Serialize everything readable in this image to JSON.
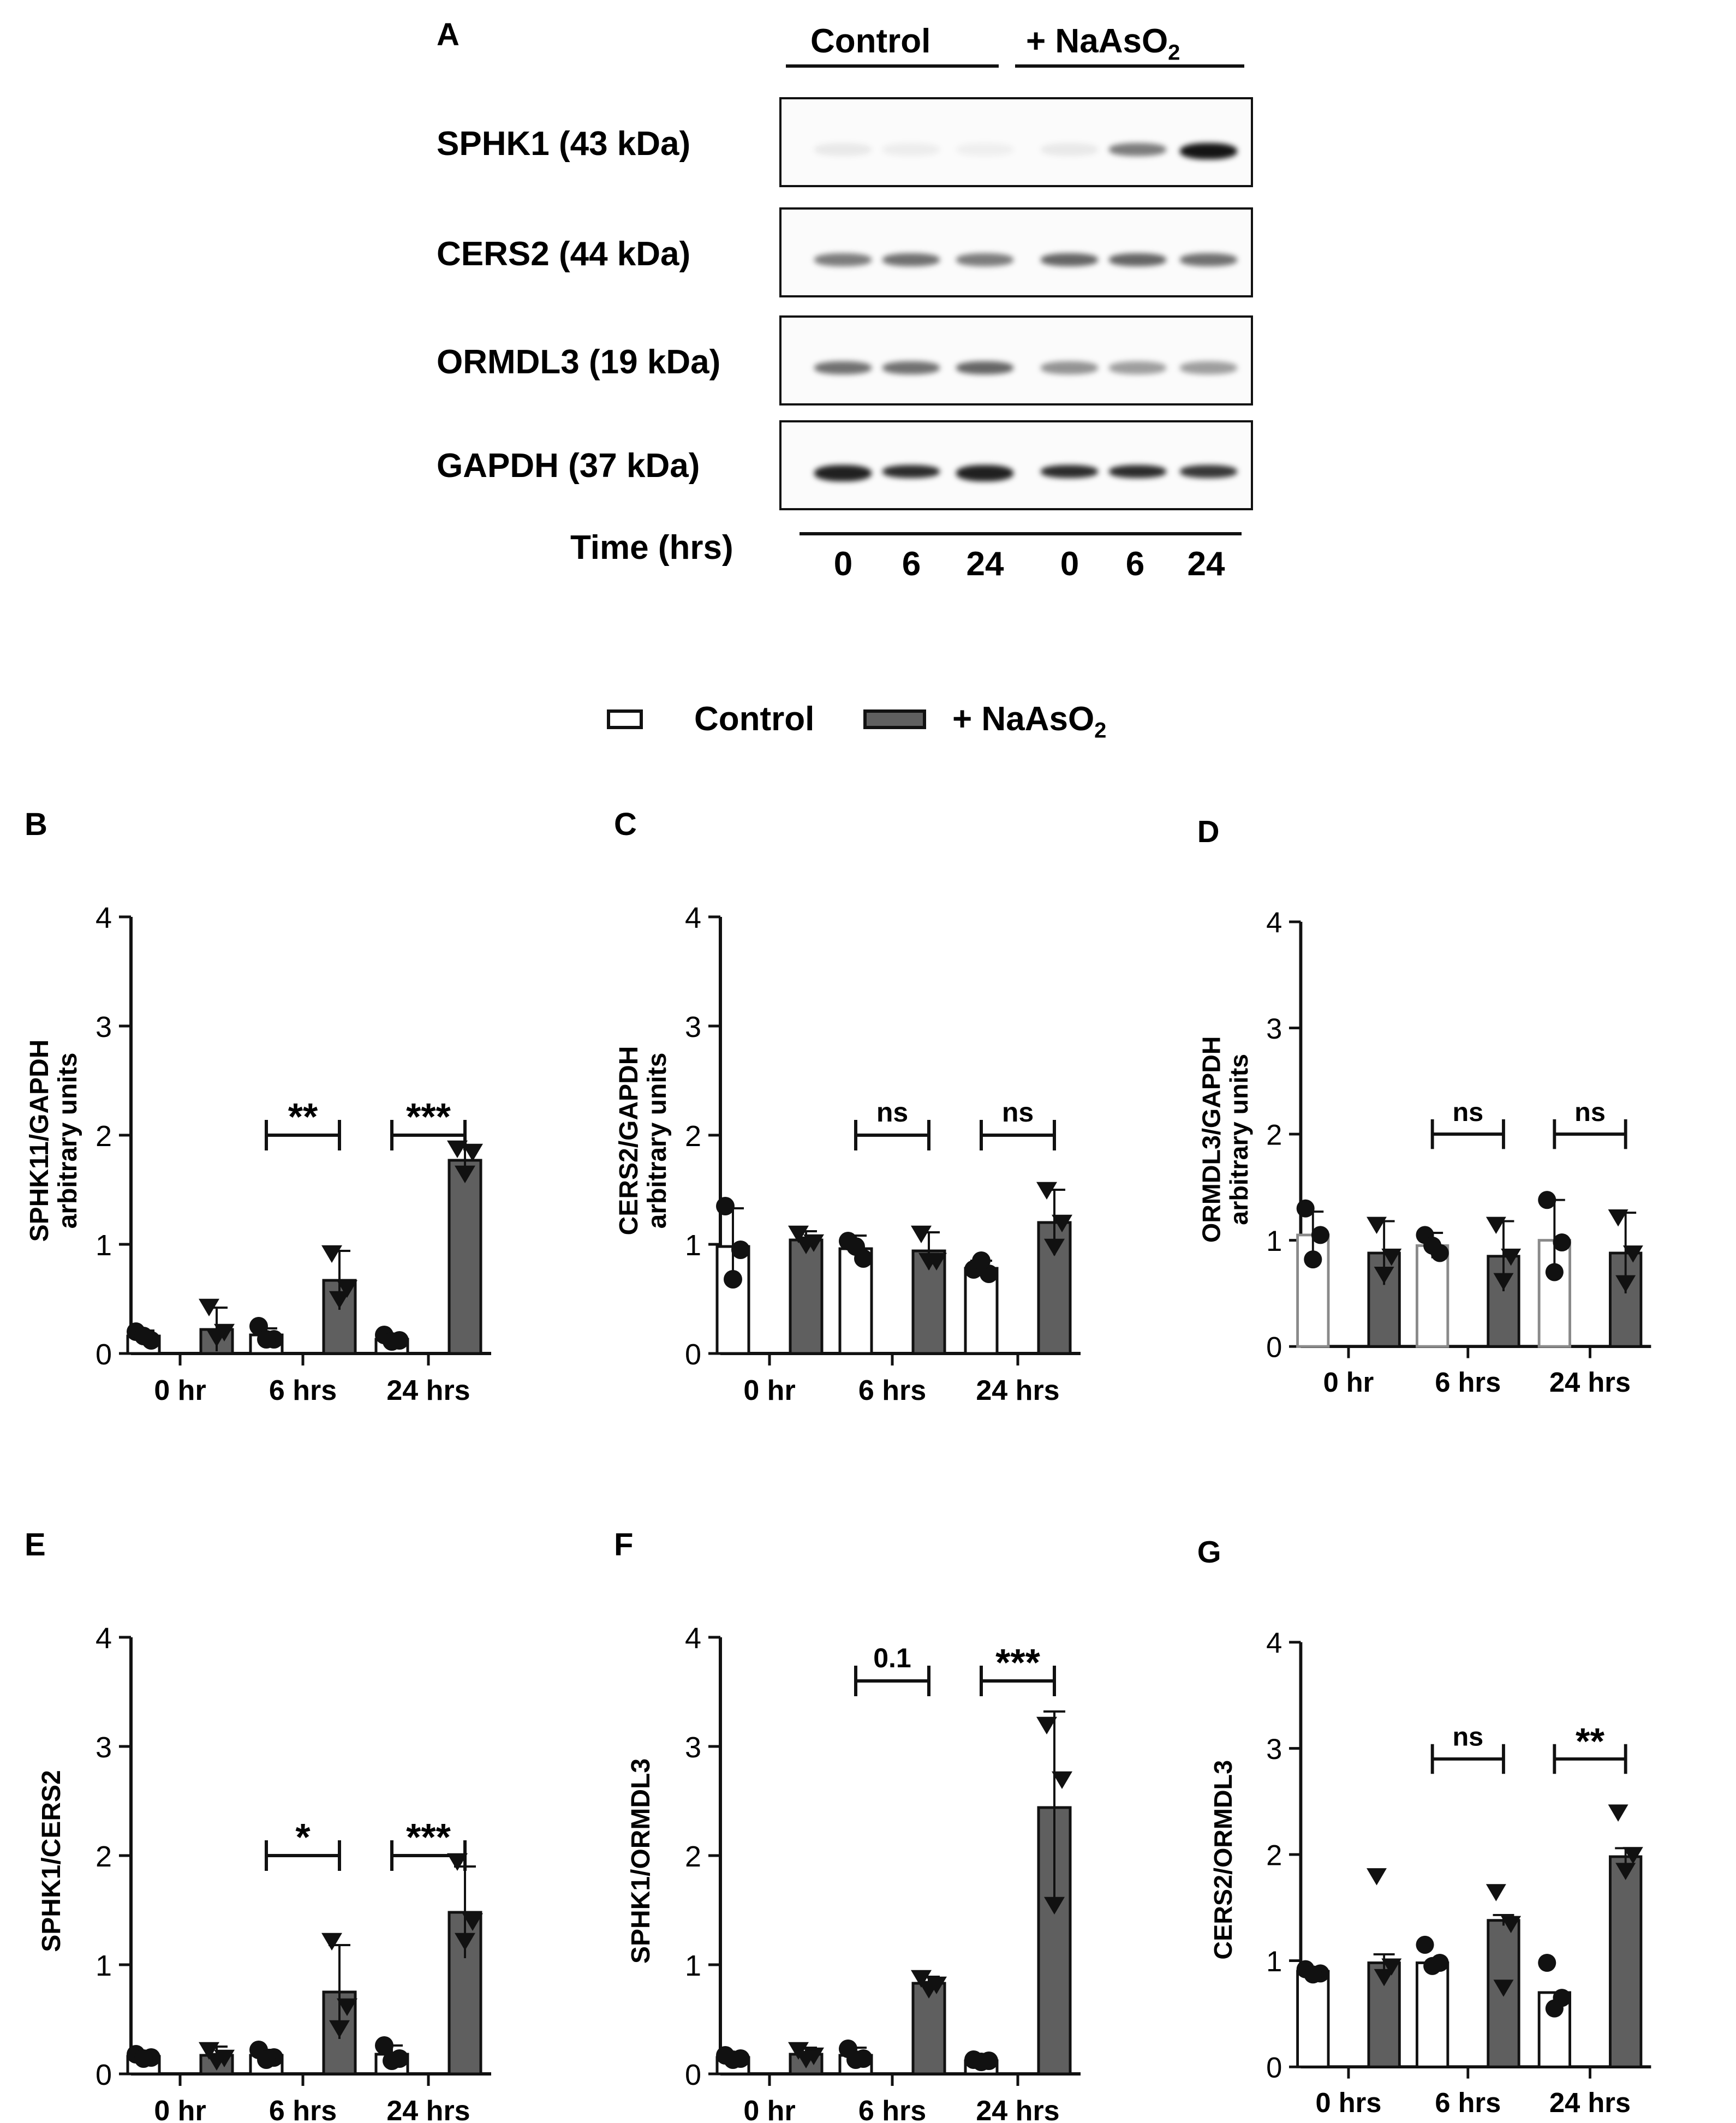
{
  "panel_a": {
    "letter": "A",
    "groups": {
      "control": "Control",
      "treated": "+ NaAsO",
      "treated_sub": "2"
    },
    "rows": [
      {
        "label": "SPHK1 (43 kDa)",
        "key": "sphk1"
      },
      {
        "label": "CERS2 (44 kDa)",
        "key": "cers2"
      },
      {
        "label": "ORMDL3 (19 kDa)",
        "key": "ormdl3"
      },
      {
        "label": "GAPDH (37 kDa)",
        "key": "gapdh"
      }
    ],
    "time_label": "Time (hrs)",
    "times": [
      "0",
      "6",
      "24",
      "0",
      "6",
      "24"
    ],
    "band_intensity": {
      "sphk1": [
        0.08,
        0.06,
        0.05,
        0.08,
        0.55,
        1.0
      ],
      "cers2": [
        0.55,
        0.6,
        0.55,
        0.65,
        0.65,
        0.6
      ],
      "ormdl3": [
        0.6,
        0.6,
        0.65,
        0.45,
        0.4,
        0.4
      ],
      "gapdh": [
        0.95,
        0.9,
        0.95,
        0.9,
        0.9,
        0.85
      ]
    }
  },
  "legend": {
    "control": "Control",
    "treated": "+ NaAsO",
    "treated_sub": "2"
  },
  "colors": {
    "treated_bar": "#5f5f5f",
    "control_bar": "#ffffff",
    "axis": "#111111",
    "grey_outline": "#8a8a8a"
  },
  "chart_data": [
    {
      "panel": "B",
      "type": "bar",
      "ylabel": "SPHK11/GAPDH",
      "ylabel2": "arbitrary units",
      "categories": [
        "0 hr",
        "6 hrs",
        "24 hrs"
      ],
      "ylim": [
        0,
        4
      ],
      "yticks": [
        "0",
        "1",
        "2",
        "3",
        "4"
      ],
      "series": [
        {
          "name": "Control",
          "values": [
            0.16,
            0.17,
            0.13
          ],
          "errors": [
            0.05,
            0.06,
            0.03
          ],
          "points": [
            [
              0.2,
              0.12,
              0.16
            ],
            [
              0.25,
              0.13,
              0.13
            ],
            [
              0.17,
              0.12,
              0.11
            ]
          ],
          "marker": "circle"
        },
        {
          "name": "+ NaAsO2",
          "values": [
            0.22,
            0.67,
            1.77
          ],
          "errors": [
            0.2,
            0.27,
            0.12
          ],
          "points": [
            [
              0.43,
              0.2,
              0.15
            ],
            [
              0.92,
              0.6,
              0.5
            ],
            [
              1.88,
              1.85,
              1.65
            ]
          ],
          "marker": "triangle"
        }
      ],
      "brackets": [
        {
          "cat": 1,
          "label": "**",
          "y": 2.0
        },
        {
          "cat": 2,
          "label": "***",
          "y": 2.0
        }
      ]
    },
    {
      "panel": "C",
      "type": "bar",
      "ylabel": "CERS2/GAPDH",
      "ylabel2": "arbitrary units",
      "categories": [
        "0 hr",
        "6 hrs",
        "24 hrs"
      ],
      "ylim": [
        0,
        4
      ],
      "yticks": [
        "0",
        "1",
        "2",
        "3",
        "4"
      ],
      "series": [
        {
          "name": "Control",
          "values": [
            0.98,
            0.96,
            0.78
          ],
          "errors": [
            0.35,
            0.12,
            0.07
          ],
          "points": [
            [
              1.35,
              0.95,
              0.68
            ],
            [
              1.03,
              0.87,
              0.98
            ],
            [
              0.77,
              0.73,
              0.85
            ]
          ],
          "marker": "circle"
        },
        {
          "name": "+ NaAsO2",
          "values": [
            1.04,
            0.94,
            1.2
          ],
          "errors": [
            0.08,
            0.17,
            0.3
          ],
          "points": [
            [
              1.1,
              1.02,
              1.0
            ],
            [
              1.1,
              0.85,
              0.85
            ],
            [
              1.5,
              1.2,
              0.98
            ]
          ],
          "marker": "triangle"
        }
      ],
      "brackets": [
        {
          "cat": 1,
          "label": "ns",
          "y": 2.0
        },
        {
          "cat": 2,
          "label": "ns",
          "y": 2.0
        }
      ]
    },
    {
      "panel": "D",
      "type": "bar",
      "ylabel": "ORMDL3/GAPDH",
      "ylabel2": "arbitrary units",
      "categories": [
        "0 hr",
        "6 hrs",
        "24 hrs"
      ],
      "ylim": [
        0,
        4
      ],
      "yticks": [
        "0",
        "1",
        "2",
        "3",
        "4"
      ],
      "control_outline": "grey",
      "series": [
        {
          "name": "Control",
          "values": [
            1.05,
            0.95,
            1.0
          ],
          "errors": [
            0.22,
            0.12,
            0.38
          ],
          "points": [
            [
              1.3,
              1.05,
              0.82
            ],
            [
              1.05,
              0.88,
              0.95
            ],
            [
              1.38,
              0.98,
              0.7
            ]
          ],
          "marker": "circle"
        },
        {
          "name": "+ NaAsO2",
          "values": [
            0.88,
            0.85,
            0.88
          ],
          "errors": [
            0.3,
            0.33,
            0.38
          ],
          "points": [
            [
              1.15,
              0.85,
              0.68
            ],
            [
              1.15,
              0.85,
              0.62
            ],
            [
              1.22,
              0.88,
              0.6
            ]
          ],
          "marker": "triangle"
        }
      ],
      "brackets": [
        {
          "cat": 1,
          "label": "ns",
          "y": 2.0
        },
        {
          "cat": 2,
          "label": "ns",
          "y": 2.0
        }
      ]
    },
    {
      "panel": "E",
      "type": "bar",
      "ylabel": "SPHK1/CERS2",
      "categories": [
        "0 hr",
        "6 hrs",
        "24 hrs"
      ],
      "ylim": [
        0,
        4
      ],
      "yticks": [
        "0",
        "1",
        "2",
        "3",
        "4"
      ],
      "series": [
        {
          "name": "Control",
          "values": [
            0.16,
            0.17,
            0.18
          ],
          "errors": [
            0.03,
            0.05,
            0.08
          ],
          "points": [
            [
              0.18,
              0.15,
              0.14
            ],
            [
              0.22,
              0.15,
              0.13
            ],
            [
              0.26,
              0.14,
              0.12
            ]
          ],
          "marker": "circle"
        },
        {
          "name": "+ NaAsO2",
          "values": [
            0.17,
            0.75,
            1.48
          ],
          "errors": [
            0.08,
            0.43,
            0.42
          ],
          "points": [
            [
              0.22,
              0.15,
              0.12
            ],
            [
              1.22,
              0.62,
              0.42
            ],
            [
              1.95,
              1.4,
              1.22
            ]
          ],
          "marker": "triangle"
        }
      ],
      "brackets": [
        {
          "cat": 1,
          "label": "*",
          "y": 2.0
        },
        {
          "cat": 2,
          "label": "***",
          "y": 2.0
        }
      ]
    },
    {
      "panel": "F",
      "type": "bar",
      "ylabel": "SPHK1/ORMDL3",
      "categories": [
        "0 hr",
        "6 hrs",
        "24 hrs"
      ],
      "ylim": [
        0,
        4
      ],
      "yticks": [
        "0",
        "1",
        "2",
        "3",
        "4"
      ],
      "series": [
        {
          "name": "Control",
          "values": [
            0.15,
            0.17,
            0.12
          ],
          "errors": [
            0.03,
            0.07,
            0.02
          ],
          "points": [
            [
              0.17,
              0.14,
              0.13
            ],
            [
              0.23,
              0.14,
              0.13
            ],
            [
              0.13,
              0.12,
              0.11
            ]
          ],
          "marker": "circle"
        },
        {
          "name": "+ NaAsO2",
          "values": [
            0.18,
            0.83,
            2.44
          ],
          "errors": [
            0.06,
            0.06,
            0.88
          ],
          "points": [
            [
              0.22,
              0.17,
              0.14
            ],
            [
              0.88,
              0.82,
              0.78
            ],
            [
              3.2,
              2.7,
              1.55
            ]
          ],
          "marker": "triangle"
        }
      ],
      "brackets": [
        {
          "cat": 1,
          "label": "0.1",
          "y": 3.6
        },
        {
          "cat": 2,
          "label": "***",
          "y": 3.6
        }
      ]
    },
    {
      "panel": "G",
      "type": "bar",
      "ylabel": "CERS2/ORMDL3",
      "categories": [
        "0 hrs",
        "6 hrs",
        "24 hrs"
      ],
      "ylim": [
        0,
        4
      ],
      "yticks": [
        "0",
        "1",
        "2",
        "3",
        "4"
      ],
      "series": [
        {
          "name": "Control",
          "values": [
            0.9,
            0.98,
            0.7
          ],
          "errors": [
            0.0,
            0.0,
            0.0
          ],
          "points": [
            [
              0.92,
              0.88,
              0.87
            ],
            [
              1.15,
              0.98,
              0.95
            ],
            [
              0.98,
              0.65,
              0.55
            ]
          ],
          "marker": "circle"
        },
        {
          "name": "+ NaAsO2",
          "values": [
            0.98,
            1.38,
            1.98
          ],
          "errors": [
            0.08,
            0.05,
            0.08
          ],
          "points": [
            [
              1.8,
              0.95,
              0.85
            ],
            [
              1.65,
              1.35,
              0.75
            ],
            [
              2.4,
              2.0,
              1.85
            ]
          ],
          "marker": "triangle"
        }
      ],
      "brackets": [
        {
          "cat": 1,
          "label": "ns",
          "y": 2.9
        },
        {
          "cat": 2,
          "label": "**",
          "y": 2.9
        }
      ]
    }
  ]
}
